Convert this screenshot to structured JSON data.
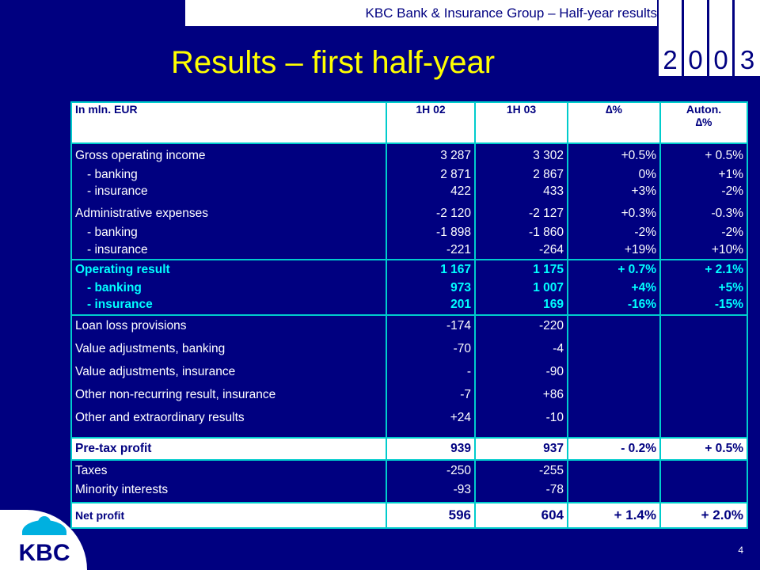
{
  "header": {
    "text": "KBC Bank & Insurance Group – Half-year results"
  },
  "year_digits": [
    "2",
    "0",
    "0",
    "3"
  ],
  "title": "Results – first half-year",
  "table": {
    "headers": {
      "label": "In mln. EUR",
      "c1": "1H 02",
      "c2": "1H 03",
      "c3": "∆%",
      "c4a": "Auton.",
      "c4b": "∆%"
    },
    "g1": {
      "r0": [
        "Gross operating income",
        "3 287",
        "3 302",
        "+0.5%",
        "+ 0.5%"
      ],
      "r1": [
        "- banking",
        "2 871",
        "2 867",
        "0%",
        "+1%"
      ],
      "r2": [
        "- insurance",
        "422",
        "433",
        "+3%",
        "-2%"
      ],
      "r3": [
        "Administrative expenses",
        "-2 120",
        "-2 127",
        "+0.3%",
        "-0.3%"
      ],
      "r4": [
        "- banking",
        "-1 898",
        "-1 860",
        "-2%",
        "-2%"
      ],
      "r5": [
        "- insurance",
        "-221",
        "-264",
        "+19%",
        "+10%"
      ]
    },
    "g2": {
      "r0": [
        "Operating result",
        "1 167",
        "1 175",
        "+ 0.7%",
        "+ 2.1%"
      ],
      "r1": [
        "- banking",
        "973",
        "1 007",
        "+4%",
        "+5%"
      ],
      "r2": [
        "- insurance",
        "201",
        "169",
        "-16%",
        "-15%"
      ]
    },
    "g3": {
      "r0": [
        "Loan loss provisions",
        "-174",
        "-220"
      ],
      "r1": [
        "Value adjustments, banking",
        "-70",
        "-4"
      ],
      "r2": [
        "Value adjustments, insurance",
        "-",
        "-90"
      ],
      "r3": [
        "Other non-recurring result, insurance",
        "-7",
        "+86"
      ],
      "r4": [
        "Other and extraordinary results",
        "+24",
        "-10"
      ]
    },
    "g4": {
      "r0": [
        "Pre-tax profit",
        "939",
        "937",
        "- 0.2%",
        "+ 0.5%"
      ]
    },
    "g5": {
      "r0": [
        "Taxes",
        "-250",
        "-255"
      ],
      "r1": [
        "Minority interests",
        "-93",
        "-78"
      ]
    },
    "g6": {
      "r0": [
        "Net profit",
        "596",
        "604",
        "+ 1.4%",
        "+ 2.0%"
      ]
    }
  },
  "logo": {
    "text": "KBC"
  },
  "page_number": "4",
  "colors": {
    "background": "#000080",
    "title": "#ffff00",
    "highlight": "#00ffff",
    "border": "#00cccc"
  }
}
